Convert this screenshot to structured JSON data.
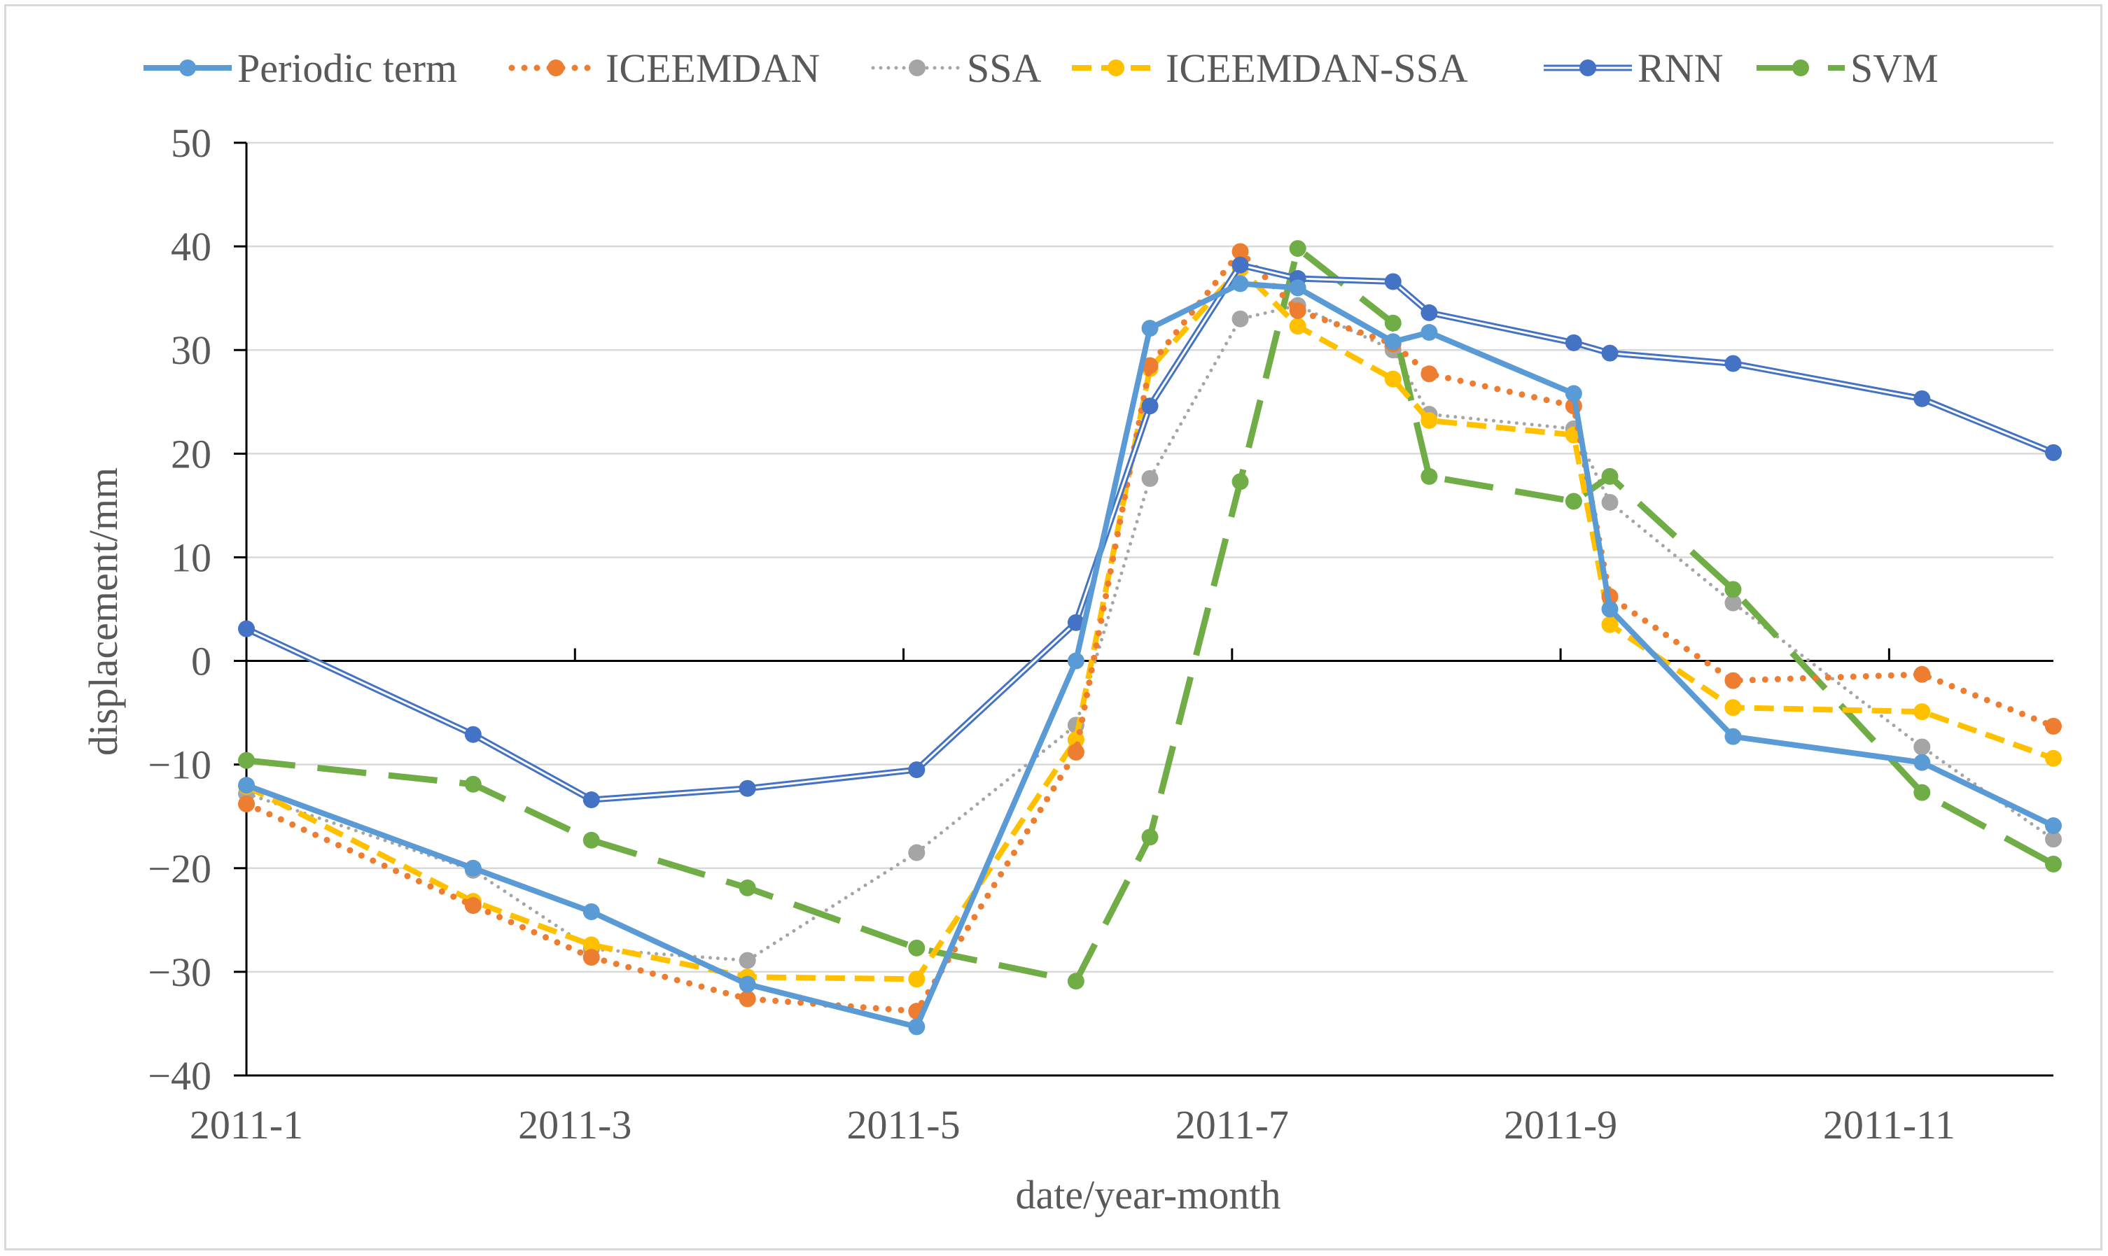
{
  "chart_data": {
    "type": "line",
    "title": "",
    "xlabel": "date/year-month",
    "ylabel": "displacement/mm",
    "ylim": [
      -40,
      50
    ],
    "yticks": [
      -40,
      -30,
      -20,
      -10,
      0,
      10,
      20,
      30,
      40,
      50
    ],
    "ytick_labels": [
      "−40",
      "−30",
      "−20",
      "−10",
      "0",
      "10",
      "20",
      "30",
      "40",
      "50"
    ],
    "xlim": [
      1,
      12
    ],
    "xticks": [
      1,
      3,
      5,
      7,
      9,
      11
    ],
    "xtick_labels": [
      "2011-1",
      "2011-3",
      "2011-5",
      "2011-7",
      "2011-9",
      "2011-11"
    ],
    "legend_position": "top",
    "grid": true,
    "x": [
      1.0,
      2.38,
      3.1,
      4.05,
      5.08,
      6.05,
      6.5,
      7.05,
      7.4,
      7.98,
      8.2,
      9.08,
      9.3,
      10.05,
      11.2,
      12.0
    ],
    "series": [
      {
        "name": "Periodic term",
        "color": "#5b9bd5",
        "style": "solid",
        "values": [
          -12.0,
          -20.0,
          -24.2,
          -31.2,
          -35.3,
          0.0,
          32.1,
          36.4,
          36.0,
          30.8,
          31.7,
          25.8,
          5.0,
          -7.3,
          -9.8,
          -15.9
        ]
      },
      {
        "name": "ICEEMDAN",
        "color": "#ed7d31",
        "style": "dotted",
        "values": [
          -13.8,
          -23.6,
          -28.6,
          -32.6,
          -33.8,
          -8.8,
          28.5,
          39.5,
          33.8,
          30.6,
          27.7,
          24.6,
          6.2,
          -1.9,
          -1.3,
          -6.3
        ]
      },
      {
        "name": "SSA",
        "color": "#a5a5a5",
        "style": "dotted",
        "values": [
          -12.8,
          -20.2,
          -27.8,
          -28.9,
          -18.5,
          -6.2,
          17.6,
          33.0,
          34.3,
          30.0,
          23.8,
          22.4,
          15.3,
          5.6,
          -8.3,
          -17.2
        ]
      },
      {
        "name": "ICEEMDAN-SSA",
        "color": "#ffc000",
        "style": "dashed",
        "values": [
          -12.1,
          -23.2,
          -27.4,
          -30.5,
          -30.7,
          -7.6,
          28.2,
          37.9,
          32.3,
          27.2,
          23.2,
          21.8,
          3.5,
          -4.5,
          -4.9,
          -9.4
        ]
      },
      {
        "name": "RNN",
        "color": "#4472c4",
        "style": "double",
        "values": [
          3.1,
          -7.1,
          -13.4,
          -12.3,
          -10.5,
          3.7,
          24.6,
          38.2,
          36.9,
          36.6,
          33.6,
          30.7,
          29.7,
          28.7,
          25.3,
          20.1
        ]
      },
      {
        "name": "SVM",
        "color": "#70ad47",
        "style": "longdash",
        "values": [
          -9.6,
          -11.9,
          -17.3,
          -21.9,
          -27.7,
          -30.9,
          -17.0,
          17.3,
          39.8,
          32.6,
          17.8,
          15.4,
          17.8,
          6.9,
          -12.7,
          -19.6
        ]
      }
    ]
  }
}
